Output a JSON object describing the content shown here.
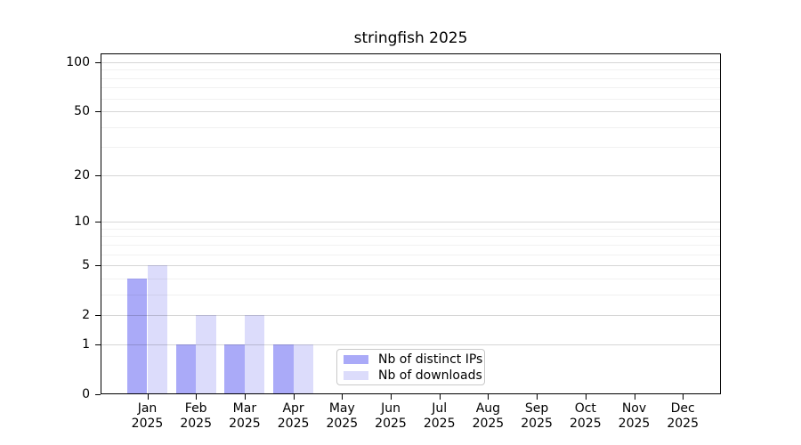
{
  "chart_data": {
    "type": "bar",
    "title": "stringfish 2025",
    "categories": [
      "Jan",
      "Feb",
      "Mar",
      "Apr",
      "May",
      "Jun",
      "Jul",
      "Aug",
      "Sep",
      "Oct",
      "Nov",
      "Dec"
    ],
    "x_sub_label": "2025",
    "series": [
      {
        "name": "Nb of distinct IPs",
        "color": "#aaaaf8",
        "values": [
          4,
          1,
          1,
          1,
          0,
          0,
          0,
          0,
          0,
          0,
          0,
          0
        ]
      },
      {
        "name": "Nb of downloads",
        "color": "#dcdcfb",
        "values": [
          5,
          2,
          2,
          1,
          0,
          0,
          0,
          0,
          0,
          0,
          0,
          0
        ]
      }
    ],
    "y_axis": {
      "scale": "log1p",
      "ticks": [
        0,
        1,
        2,
        5,
        10,
        20,
        50,
        100
      ],
      "minor_ticks": [
        3,
        4,
        6,
        7,
        8,
        9,
        30,
        40,
        60,
        70,
        80,
        90
      ],
      "min": 0,
      "max": 100
    },
    "xlabel": "",
    "ylabel": "",
    "grid": true,
    "legend_position": "inside-bottom-center",
    "colors": {
      "axis": "#000000",
      "major_grid": "#d6d6d6",
      "minor_grid": "#f0f0f0",
      "background": "#ffffff",
      "legend_border": "#c9c9c9"
    }
  }
}
